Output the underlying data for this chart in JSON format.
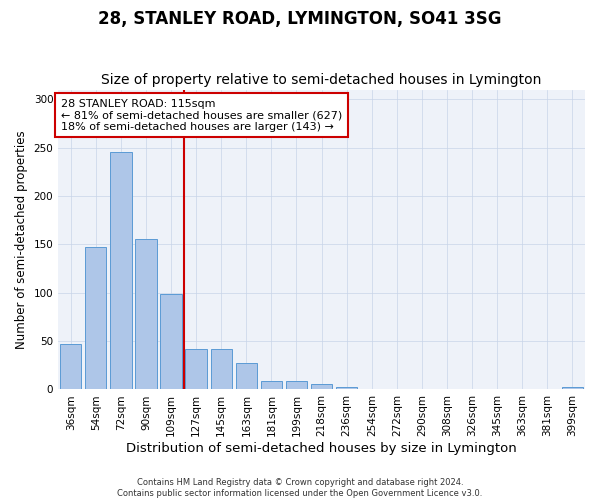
{
  "title": "28, STANLEY ROAD, LYMINGTON, SO41 3SG",
  "subtitle": "Size of property relative to semi-detached houses in Lymington",
  "xlabel": "Distribution of semi-detached houses by size in Lymington",
  "ylabel": "Number of semi-detached properties",
  "categories": [
    "36sqm",
    "54sqm",
    "72sqm",
    "90sqm",
    "109sqm",
    "127sqm",
    "145sqm",
    "163sqm",
    "181sqm",
    "199sqm",
    "218sqm",
    "236sqm",
    "254sqm",
    "272sqm",
    "290sqm",
    "308sqm",
    "326sqm",
    "345sqm",
    "363sqm",
    "381sqm",
    "399sqm"
  ],
  "values": [
    47,
    147,
    245,
    156,
    99,
    42,
    42,
    27,
    9,
    9,
    6,
    3,
    0,
    0,
    0,
    0,
    0,
    0,
    0,
    0,
    3
  ],
  "bar_color": "#aec6e8",
  "bar_edge_color": "#5b9bd5",
  "property_line_x": 4.5,
  "annotation_text": "28 STANLEY ROAD: 115sqm\n← 81% of semi-detached houses are smaller (627)\n18% of semi-detached houses are larger (143) →",
  "annotation_box_color": "#ffffff",
  "annotation_box_edge": "#cc0000",
  "vline_color": "#cc0000",
  "ylim": [
    0,
    310
  ],
  "yticks": [
    0,
    50,
    100,
    150,
    200,
    250,
    300
  ],
  "footer": "Contains HM Land Registry data © Crown copyright and database right 2024.\nContains public sector information licensed under the Open Government Licence v3.0.",
  "title_fontsize": 12,
  "subtitle_fontsize": 10,
  "xlabel_fontsize": 9.5,
  "ylabel_fontsize": 8.5,
  "tick_fontsize": 7.5,
  "annotation_fontsize": 8,
  "footer_fontsize": 6,
  "bg_color": "#eef2f9"
}
